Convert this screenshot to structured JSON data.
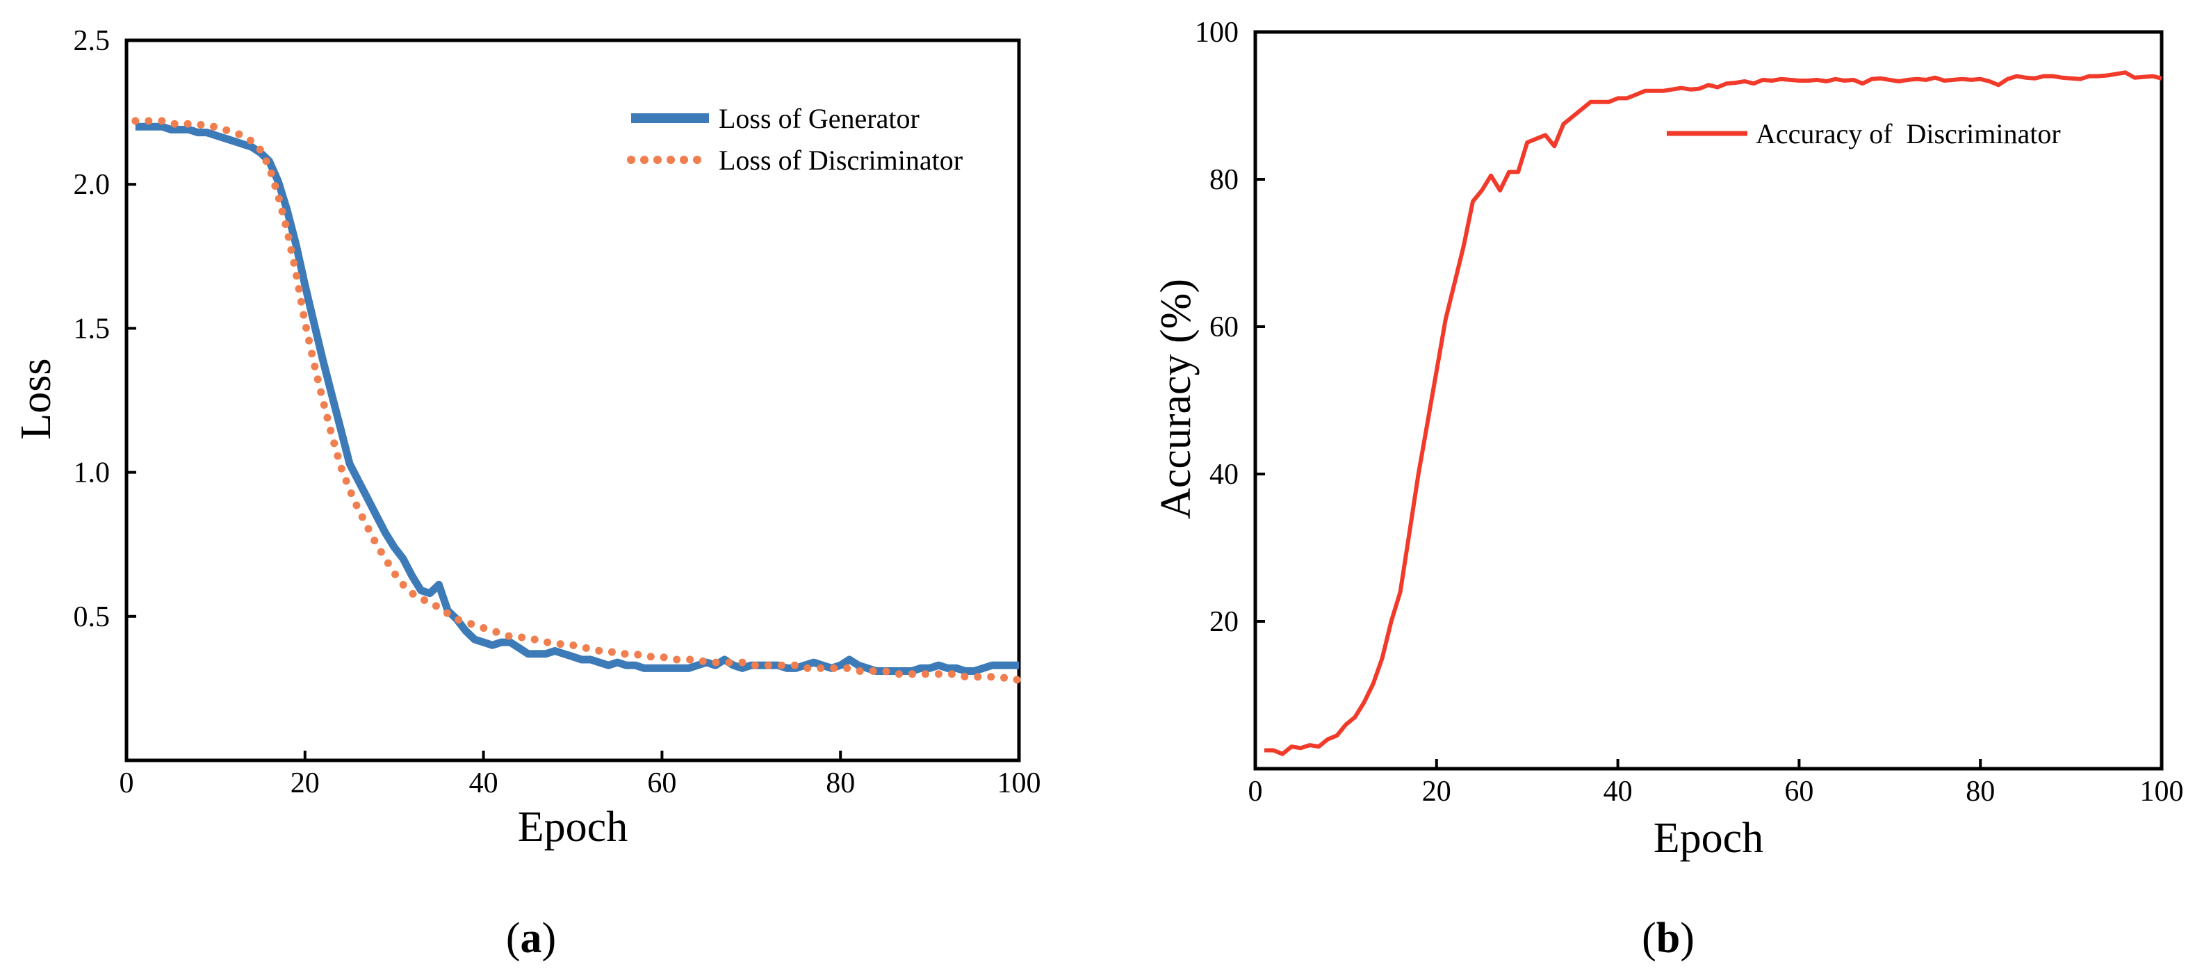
{
  "chart_data": [
    {
      "panel": "a",
      "type": "line",
      "xlabel": "Epoch",
      "ylabel": "Loss",
      "xlim": [
        0,
        100
      ],
      "ylim": [
        0,
        2.5
      ],
      "xticks": [
        0,
        20,
        40,
        60,
        80,
        100
      ],
      "yticks": [
        0.5,
        1.0,
        1.5,
        2.0,
        2.5
      ],
      "ytick_labels": [
        "0.5",
        "1.0",
        "1.5",
        "2.0",
        "2.5"
      ],
      "grid": false,
      "legend_position": "top-right",
      "series": [
        {
          "name": "Loss of Generator",
          "color": "#3d7ab8",
          "style": "solid",
          "x": [
            1,
            2,
            3,
            4,
            5,
            6,
            7,
            8,
            9,
            10,
            11,
            12,
            13,
            14,
            15,
            16,
            17,
            18,
            19,
            20,
            21,
            22,
            23,
            24,
            25,
            26,
            27,
            28,
            29,
            30,
            31,
            32,
            33,
            34,
            35,
            36,
            37,
            38,
            39,
            40,
            41,
            42,
            43,
            44,
            45,
            46,
            47,
            48,
            49,
            50,
            51,
            52,
            53,
            54,
            55,
            56,
            57,
            58,
            59,
            60,
            61,
            62,
            63,
            64,
            65,
            66,
            67,
            68,
            69,
            70,
            71,
            72,
            73,
            74,
            75,
            76,
            77,
            78,
            79,
            80,
            81,
            82,
            83,
            84,
            85,
            86,
            87,
            88,
            89,
            90,
            91,
            92,
            93,
            94,
            95,
            96,
            97,
            98,
            99,
            100
          ],
          "y": [
            2.2,
            2.2,
            2.2,
            2.2,
            2.19,
            2.19,
            2.19,
            2.18,
            2.18,
            2.17,
            2.16,
            2.15,
            2.14,
            2.13,
            2.11,
            2.08,
            2.01,
            1.91,
            1.79,
            1.65,
            1.52,
            1.39,
            1.27,
            1.15,
            1.03,
            0.97,
            0.91,
            0.85,
            0.79,
            0.74,
            0.7,
            0.64,
            0.59,
            0.58,
            0.61,
            0.52,
            0.49,
            0.45,
            0.42,
            0.41,
            0.4,
            0.41,
            0.41,
            0.39,
            0.37,
            0.37,
            0.37,
            0.38,
            0.37,
            0.36,
            0.35,
            0.35,
            0.34,
            0.33,
            0.34,
            0.33,
            0.33,
            0.32,
            0.32,
            0.32,
            0.32,
            0.32,
            0.32,
            0.33,
            0.34,
            0.33,
            0.35,
            0.33,
            0.32,
            0.33,
            0.33,
            0.33,
            0.33,
            0.32,
            0.32,
            0.33,
            0.34,
            0.33,
            0.32,
            0.33,
            0.35,
            0.33,
            0.32,
            0.31,
            0.31,
            0.31,
            0.31,
            0.31,
            0.32,
            0.32,
            0.33,
            0.32,
            0.32,
            0.31,
            0.31,
            0.32,
            0.33,
            0.33,
            0.33,
            0.33
          ]
        },
        {
          "name": "Loss of Discriminator",
          "color": "#f07e4e",
          "style": "dotted",
          "x": [
            1,
            2,
            3,
            4,
            5,
            6,
            7,
            8,
            9,
            10,
            11,
            12,
            13,
            14,
            15,
            16,
            17,
            18,
            19,
            20,
            21,
            22,
            23,
            24,
            25,
            26,
            27,
            28,
            29,
            30,
            31,
            32,
            33,
            34,
            35,
            36,
            37,
            38,
            39,
            40,
            41,
            42,
            43,
            44,
            45,
            46,
            47,
            48,
            49,
            50,
            51,
            52,
            53,
            54,
            55,
            56,
            57,
            58,
            59,
            60,
            61,
            62,
            63,
            64,
            65,
            66,
            67,
            68,
            69,
            70,
            71,
            72,
            73,
            74,
            75,
            76,
            77,
            78,
            79,
            80,
            81,
            82,
            83,
            84,
            85,
            86,
            87,
            88,
            89,
            90,
            91,
            92,
            93,
            94,
            95,
            96,
            97,
            98,
            99,
            100
          ],
          "y": [
            2.22,
            2.22,
            2.22,
            2.22,
            2.21,
            2.21,
            2.21,
            2.21,
            2.2,
            2.2,
            2.19,
            2.18,
            2.17,
            2.15,
            2.12,
            2.06,
            1.96,
            1.84,
            1.69,
            1.52,
            1.38,
            1.25,
            1.13,
            1.02,
            0.94,
            0.87,
            0.81,
            0.75,
            0.7,
            0.65,
            0.61,
            0.58,
            0.56,
            0.55,
            0.53,
            0.51,
            0.49,
            0.48,
            0.47,
            0.46,
            0.45,
            0.44,
            0.43,
            0.43,
            0.42,
            0.42,
            0.41,
            0.41,
            0.4,
            0.4,
            0.39,
            0.39,
            0.38,
            0.38,
            0.37,
            0.37,
            0.37,
            0.36,
            0.36,
            0.36,
            0.35,
            0.35,
            0.35,
            0.35,
            0.34,
            0.34,
            0.34,
            0.34,
            0.34,
            0.33,
            0.33,
            0.33,
            0.33,
            0.33,
            0.33,
            0.32,
            0.32,
            0.32,
            0.32,
            0.32,
            0.32,
            0.31,
            0.31,
            0.31,
            0.31,
            0.3,
            0.3,
            0.3,
            0.3,
            0.3,
            0.3,
            0.3,
            0.3,
            0.29,
            0.29,
            0.29,
            0.29,
            0.29,
            0.28,
            0.28
          ]
        }
      ]
    },
    {
      "panel": "b",
      "type": "line",
      "xlabel": "Epoch",
      "ylabel": "Accuracy (%)",
      "xlim": [
        0,
        100
      ],
      "ylim": [
        0,
        100
      ],
      "xticks": [
        0,
        20,
        40,
        60,
        80,
        100
      ],
      "yticks": [
        20,
        40,
        60,
        80,
        100
      ],
      "ytick_labels": [
        "20",
        "40",
        "60",
        "80",
        "100"
      ],
      "grid": false,
      "legend_position": "top-right",
      "series": [
        {
          "name": "Accuracy of  Discriminator",
          "color": "#f23a2a",
          "style": "solid",
          "x": [
            1,
            2,
            3,
            4,
            5,
            6,
            7,
            8,
            9,
            10,
            11,
            12,
            13,
            14,
            15,
            16,
            17,
            18,
            19,
            20,
            21,
            22,
            23,
            24,
            25,
            26,
            27,
            28,
            29,
            30,
            31,
            32,
            33,
            34,
            35,
            36,
            37,
            38,
            39,
            40,
            41,
            42,
            43,
            44,
            45,
            46,
            47,
            48,
            49,
            50,
            51,
            52,
            53,
            54,
            55,
            56,
            57,
            58,
            59,
            60,
            61,
            62,
            63,
            64,
            65,
            66,
            67,
            68,
            69,
            70,
            71,
            72,
            73,
            74,
            75,
            76,
            77,
            78,
            79,
            80,
            81,
            82,
            83,
            84,
            85,
            86,
            87,
            88,
            89,
            90,
            91,
            92,
            93,
            94,
            95,
            96,
            97,
            98,
            99,
            100
          ],
          "y": [
            2.5,
            2.5,
            2.0,
            3.0,
            2.8,
            3.2,
            3.0,
            4.0,
            4.5,
            6.0,
            7.0,
            9.0,
            11.5,
            15,
            20,
            24,
            32,
            40,
            47,
            54,
            61,
            66,
            71,
            77,
            78.5,
            80.5,
            78.5,
            81,
            81,
            85,
            85.5,
            86,
            84.5,
            87.5,
            88.5,
            89.5,
            90.5,
            90.5,
            90.5,
            91,
            91,
            91.5,
            92,
            92,
            92,
            92.2,
            92.4,
            92.2,
            92.3,
            92.8,
            92.5,
            93,
            93.1,
            93.3,
            93.0,
            93.5,
            93.4,
            93.6,
            93.5,
            93.4,
            93.4,
            93.5,
            93.3,
            93.6,
            93.4,
            93.5,
            93.0,
            93.6,
            93.7,
            93.5,
            93.3,
            93.5,
            93.6,
            93.5,
            93.8,
            93.4,
            93.5,
            93.6,
            93.5,
            93.6,
            93.3,
            92.8,
            93.6,
            94.0,
            93.8,
            93.7,
            94.0,
            94.0,
            93.8,
            93.7,
            93.6,
            94.0,
            94.0,
            94.1,
            94.3,
            94.5,
            93.8,
            93.9,
            94.0,
            93.7
          ]
        }
      ]
    }
  ],
  "panel_labels": [
    {
      "open": "(",
      "letter": "a",
      "close": ")"
    },
    {
      "open": "(",
      "letter": "b",
      "close": ")"
    }
  ]
}
